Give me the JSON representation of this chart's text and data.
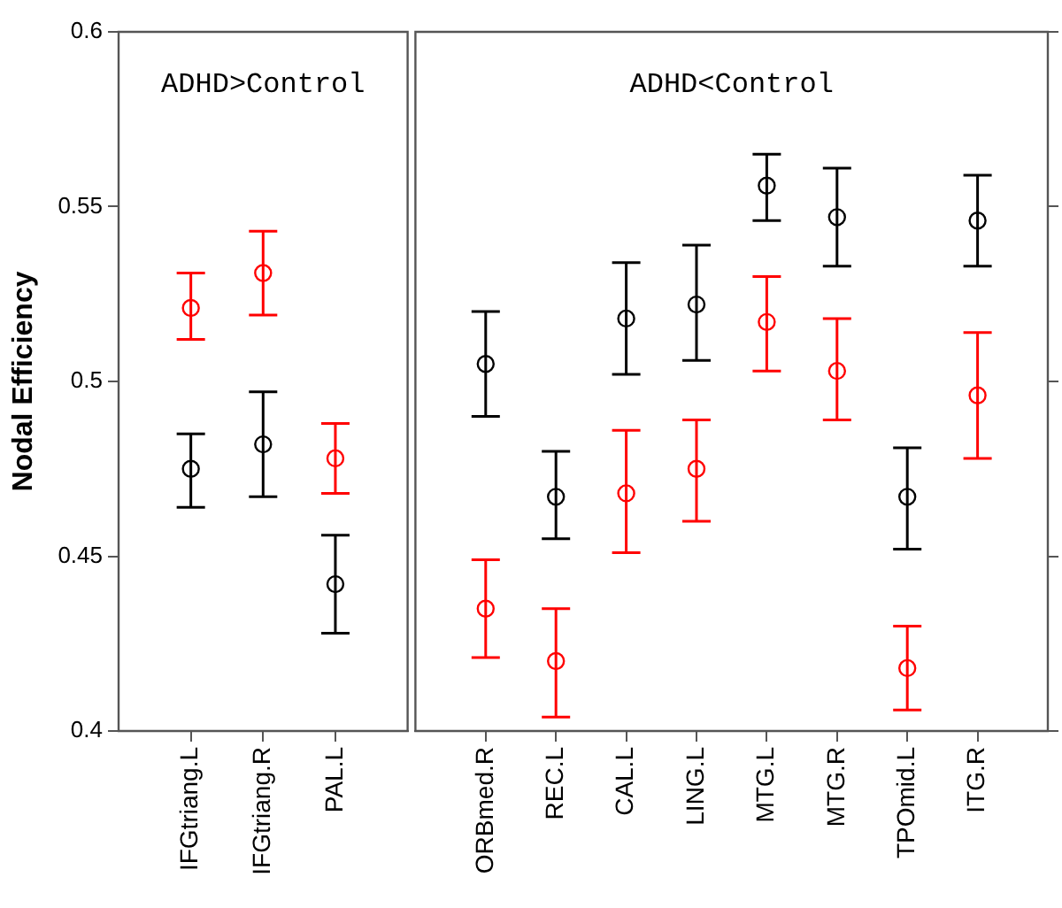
{
  "chart_data": [
    {
      "type": "scatter",
      "title": "ADHD>Control",
      "ylabel": "Nodal Efficiency",
      "categories": [
        "IFGtriang.L",
        "IFGtriang.R",
        "PAL.L"
      ],
      "ylim": [
        0.4,
        0.6
      ],
      "yticks": [
        0.4,
        0.45,
        0.5,
        0.55,
        0.6
      ],
      "grid": false,
      "legend": false,
      "marker": "circle",
      "series": [
        {
          "color": "#000000",
          "values": [
            0.475,
            0.482,
            0.442
          ],
          "errors": [
            [
              0.464,
              0.485
            ],
            [
              0.467,
              0.497
            ],
            [
              0.428,
              0.456
            ]
          ]
        },
        {
          "color": "#ff0000",
          "values": [
            0.521,
            0.531,
            0.478
          ],
          "errors": [
            [
              0.512,
              0.531
            ],
            [
              0.519,
              0.543
            ],
            [
              0.468,
              0.488
            ]
          ]
        }
      ]
    },
    {
      "type": "scatter",
      "title": "ADHD<Control",
      "categories": [
        "ORBmed.R",
        "REC.L",
        "CAL.L",
        "LING.L",
        "MTG.L",
        "MTG.R",
        "TPOmid.L",
        "ITG.R"
      ],
      "ylim": [
        0.4,
        0.6
      ],
      "yticks": [
        0.4,
        0.45,
        0.5,
        0.55,
        0.6
      ],
      "tick_labels": "x",
      "grid": false,
      "legend": false,
      "marker": "circle",
      "series": [
        {
          "color": "#000000",
          "values": [
            0.505,
            0.467,
            0.518,
            0.522,
            0.556,
            0.547,
            0.467,
            0.546
          ],
          "errors": [
            [
              0.49,
              0.52
            ],
            [
              0.455,
              0.48
            ],
            [
              0.502,
              0.534
            ],
            [
              0.506,
              0.539
            ],
            [
              0.546,
              0.565
            ],
            [
              0.533,
              0.561
            ],
            [
              0.452,
              0.481
            ],
            [
              0.533,
              0.559
            ]
          ]
        },
        {
          "color": "#ff0000",
          "values": [
            0.435,
            0.42,
            0.468,
            0.475,
            0.517,
            0.503,
            0.418,
            0.496
          ],
          "errors": [
            [
              0.421,
              0.449
            ],
            [
              0.404,
              0.435
            ],
            [
              0.451,
              0.486
            ],
            [
              0.46,
              0.489
            ],
            [
              0.503,
              0.53
            ],
            [
              0.489,
              0.518
            ],
            [
              0.406,
              0.43
            ],
            [
              0.478,
              0.514
            ]
          ]
        }
      ]
    }
  ]
}
